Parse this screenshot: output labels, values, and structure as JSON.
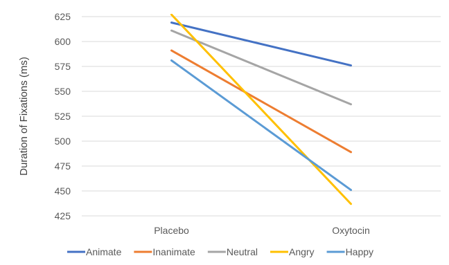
{
  "chart_data": {
    "type": "line",
    "title": "",
    "xlabel": "",
    "ylabel": "Duration of Fixations (ms)",
    "categories": [
      "Placebo",
      "Oxytocin"
    ],
    "ylim": [
      425,
      625
    ],
    "yticks": [
      425,
      450,
      475,
      500,
      525,
      550,
      575,
      600,
      625
    ],
    "ytick_labels": [
      "425",
      "450",
      "475",
      "500",
      "525",
      "550",
      "575",
      "600",
      "625"
    ],
    "grid": true,
    "legend_position": "bottom",
    "series": [
      {
        "name": "Animate",
        "values": [
          619,
          576
        ],
        "color": "#4472C4"
      },
      {
        "name": "Inanimate",
        "values": [
          591,
          489
        ],
        "color": "#ED7D31"
      },
      {
        "name": "Neutral",
        "values": [
          611,
          537
        ],
        "color": "#A5A5A5"
      },
      {
        "name": "Angry",
        "values": [
          627,
          437
        ],
        "color": "#FFC000"
      },
      {
        "name": "Happy",
        "values": [
          581,
          451
        ],
        "color": "#5B9BD5"
      }
    ]
  }
}
